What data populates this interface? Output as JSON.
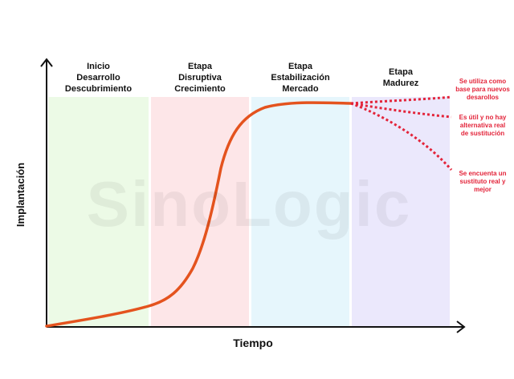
{
  "stages": [
    {
      "label": "Inicio\nDesarrollo\nDescubrimiento",
      "color": "#ecfae6"
    },
    {
      "label": "Etapa\nDisruptiva\nCrecimiento",
      "color": "#fde6e8"
    },
    {
      "label": "Etapa\nEstabilización\nMercado",
      "color": "#e6f6fc"
    },
    {
      "label": "Etapa\nMadurez",
      "color": "#ebe8fc"
    }
  ],
  "outcomes": [
    {
      "label": "Se utiliza como\nbase para nuevos\ndesarollos"
    },
    {
      "label": "Es útil y no hay\nalternativa real\nde sustitución"
    },
    {
      "label": "Se encuenta un\nsustituto real y\nmejor"
    }
  ],
  "axes": {
    "x_title": "Tiempo",
    "y_title": "Implantación"
  },
  "watermark": "SinoLogic",
  "colors": {
    "curve": "#e4531e",
    "outcome": "#e3243a",
    "axis": "#111111"
  }
}
